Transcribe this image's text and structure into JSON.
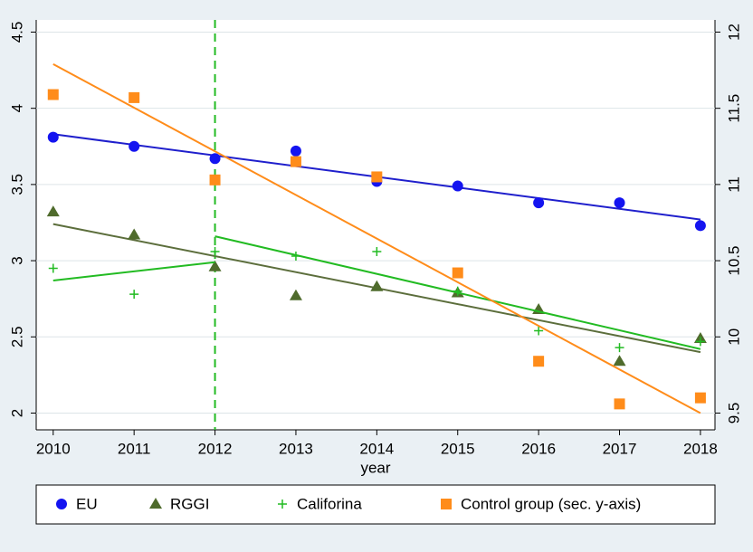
{
  "chart_data": {
    "type": "scatter",
    "x_label": "year",
    "x": [
      2010,
      2011,
      2012,
      2013,
      2014,
      2015,
      2016,
      2017,
      2018
    ],
    "xlim": [
      2009.79,
      2018.18
    ],
    "xticks": [
      2010,
      2011,
      2012,
      2013,
      2014,
      2015,
      2016,
      2017,
      2018
    ],
    "ylim": [
      1.89,
      4.58
    ],
    "yticks": [
      2,
      2.5,
      3,
      3.5,
      4,
      4.5
    ],
    "y2lim": [
      9.39,
      12.08
    ],
    "y2ticks": [
      9.5,
      10,
      10.5,
      11,
      11.5,
      12
    ],
    "grid": true,
    "vline": {
      "x": 2012,
      "color": "#22bb22"
    },
    "series": [
      {
        "name": "EU",
        "color": "#1414f0",
        "marker": "circle",
        "values": [
          3.81,
          3.75,
          3.67,
          3.72,
          3.52,
          3.49,
          3.38,
          3.38,
          3.23
        ],
        "fit": [
          {
            "x": [
              2010,
              2018
            ],
            "values": [
              3.83,
              3.27
            ]
          }
        ],
        "fit_color": "#1f1fcc"
      },
      {
        "name": "RGGI",
        "color": "#4f6b2c",
        "marker": "triangle",
        "values": [
          3.32,
          3.17,
          2.96,
          2.77,
          2.83,
          2.79,
          2.68,
          2.34,
          2.49
        ],
        "fit": [
          {
            "x": [
              2010,
              2018
            ],
            "values": [
              3.24,
              2.4
            ]
          }
        ],
        "fit_color": "#5c6e3c"
      },
      {
        "name": "Califorina",
        "color": "#22bb22",
        "marker": "plus",
        "values": [
          2.95,
          2.78,
          3.06,
          3.03,
          3.06,
          2.8,
          2.54,
          2.43,
          2.47
        ],
        "fit": [
          {
            "x": [
              2010,
              2012
            ],
            "values": [
              2.87,
              2.99
            ]
          },
          {
            "x": [
              2012,
              2018
            ],
            "values": [
              3.16,
              2.42
            ]
          }
        ],
        "fit_color": "#22bb22"
      },
      {
        "name": "Control group (sec. y-axis)",
        "color": "#ff8c1a",
        "marker": "square",
        "axis": "y2",
        "values": [
          11.59,
          11.57,
          11.03,
          11.15,
          11.05,
          10.42,
          9.84,
          9.56,
          9.6
        ],
        "fit": [
          {
            "x": [
              2010,
              2018
            ],
            "values": [
              11.79,
              9.5
            ]
          }
        ],
        "fit_color": "#ff8c1a"
      }
    ]
  }
}
